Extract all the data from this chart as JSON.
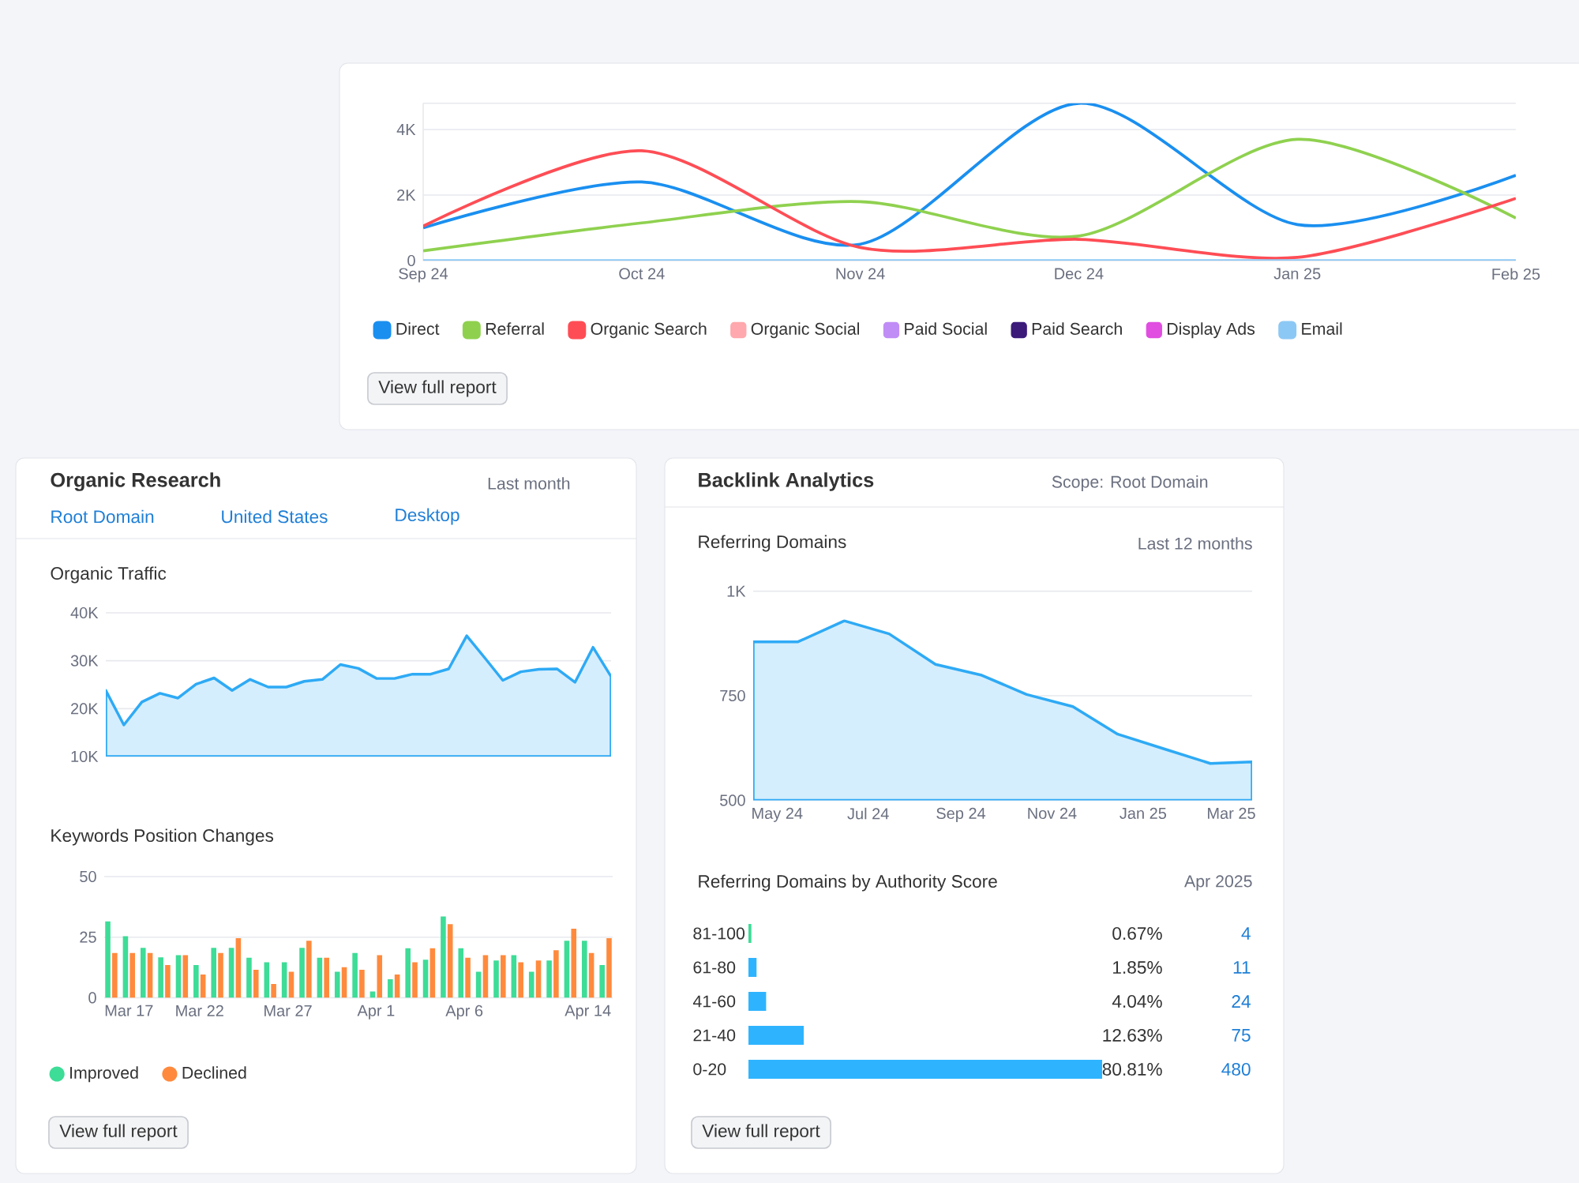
{
  "chart_data": [
    {
      "type": "line",
      "categories": [
        "Sep 24",
        "Oct 24",
        "Nov 24",
        "Dec 24",
        "Jan 25",
        "Feb 25"
      ],
      "series": [
        {
          "name": "Direct",
          "color": "#1a8ff0",
          "values": [
            1000,
            2400,
            500,
            4800,
            1100,
            2600
          ]
        },
        {
          "name": "Referral",
          "color": "#8fd14f",
          "values": [
            300,
            1150,
            1800,
            750,
            3700,
            1300
          ]
        },
        {
          "name": "Organic Search",
          "color": "#ff4d55",
          "values": [
            1050,
            3350,
            400,
            650,
            100,
            1900
          ]
        },
        {
          "name": "Organic Social",
          "color": "#ffa8ad",
          "values": [
            null,
            null,
            null,
            null,
            null,
            null
          ]
        },
        {
          "name": "Paid Social",
          "color": "#c08cf5",
          "values": [
            null,
            null,
            null,
            null,
            null,
            null
          ]
        },
        {
          "name": "Paid Search",
          "color": "#3b1a7a",
          "values": [
            null,
            null,
            null,
            null,
            null,
            null
          ]
        },
        {
          "name": "Display Ads",
          "color": "#e04de0",
          "values": [
            null,
            null,
            null,
            null,
            null,
            null
          ]
        },
        {
          "name": "Email",
          "color": "#8cc8f5",
          "values": [
            0,
            0,
            0,
            0,
            0,
            0
          ]
        }
      ],
      "ylim": [
        0,
        4800
      ],
      "yticks": [
        0,
        {
          "value": 2000,
          "label": "2K"
        },
        {
          "value": 4000,
          "label": "4K"
        }
      ],
      "grid": "y",
      "legend": "bottom",
      "annotations": [
        "View full report"
      ]
    },
    {
      "type": "area",
      "title": "Organic Traffic",
      "categories": [
        null,
        null,
        null,
        null,
        null,
        null,
        null,
        null,
        null,
        null,
        null,
        null,
        null,
        null,
        null,
        null,
        null,
        null,
        null,
        null,
        null,
        null,
        null,
        null,
        null,
        null,
        null,
        null,
        null
      ],
      "values": [
        23800,
        16600,
        21400,
        23200,
        22200,
        25100,
        26400,
        23800,
        26100,
        24500,
        24500,
        25700,
        26100,
        29200,
        28400,
        26300,
        26300,
        27200,
        27200,
        28300,
        35200,
        30600,
        25900,
        27700,
        28200,
        28300,
        25500,
        32800,
        26700
      ],
      "color": "#2eaaf5",
      "ylim": [
        10000,
        40000
      ],
      "yticks": [
        {
          "value": 10000,
          "label": "10K"
        },
        {
          "value": 20000,
          "label": "20K"
        },
        {
          "value": 30000,
          "label": "30K"
        },
        {
          "value": 40000,
          "label": "40K"
        }
      ],
      "grid": "y",
      "tick_labels": "y",
      "annotations": [
        "Organic Research",
        "Last month",
        "Root Domain",
        "United States",
        "Desktop"
      ]
    },
    {
      "type": "bar",
      "title": "Keywords Position Changes",
      "categories": [
        null,
        "Mar 17",
        null,
        null,
        null,
        "Mar 22",
        null,
        null,
        null,
        null,
        "Mar 27",
        null,
        null,
        null,
        null,
        "Apr 1",
        null,
        null,
        null,
        null,
        "Apr 6",
        null,
        null,
        null,
        null,
        null,
        null,
        "Apr 14",
        null
      ],
      "series": [
        {
          "name": "Improved",
          "color": "#3ddc97",
          "values": [
            31.5,
            25.4,
            20.6,
            16.7,
            17.6,
            13.5,
            20.6,
            20.6,
            16.5,
            14.6,
            14.6,
            20.6,
            16.5,
            10.7,
            18.5,
            2.6,
            7.6,
            20.4,
            15.7,
            33.5,
            20.4,
            10.7,
            15.4,
            17.6,
            10.7,
            15.4,
            23.5,
            23.5,
            13.5
          ]
        },
        {
          "name": "Declined",
          "color": "#ff8a3d",
          "values": [
            18.5,
            18.5,
            18.5,
            13.5,
            17.6,
            9.6,
            18.5,
            24.6,
            11.5,
            5.7,
            10.7,
            23.5,
            16.5,
            12.6,
            11.5,
            17.6,
            9.6,
            14.6,
            20.4,
            30.4,
            16.5,
            17.6,
            17.6,
            14.6,
            15.4,
            19.6,
            28.5,
            18.5,
            24.6
          ]
        }
      ],
      "ylim": [
        0,
        50
      ],
      "yticks": [
        0,
        25,
        50
      ],
      "grid": "y",
      "legend": "bottom left",
      "annotations": [
        "View full report"
      ]
    },
    {
      "type": "area",
      "title": "Referring Domains",
      "x": [
        "2024-04-15",
        "2024-05-15",
        "2024-06-15",
        "2024-07-15",
        "2024-08-15",
        "2024-09-15",
        "2024-10-15",
        "2024-11-15",
        "2024-12-15",
        "2025-01-15",
        "2025-02-15",
        "2025-03-15"
      ],
      "values": [
        879,
        879,
        929,
        898,
        825,
        799,
        753,
        724,
        658,
        623,
        588,
        592
      ],
      "color": "#2eaaf5",
      "xlim": [
        "2024-04-15",
        "2025-03-15"
      ],
      "xticks": [
        {
          "value": "2024-05-01",
          "label": "May 24"
        },
        {
          "value": "2024-07-01",
          "label": "Jul 24"
        },
        {
          "value": "2024-09-01",
          "label": "Sep 24"
        },
        {
          "value": "2024-11-01",
          "label": "Nov 24"
        },
        {
          "value": "2025-01-01",
          "label": "Jan 25"
        },
        {
          "value": "2025-03-01",
          "label": "Mar 25"
        }
      ],
      "ylim": [
        500,
        1000
      ],
      "yticks": [
        500,
        750,
        {
          "value": 1000,
          "label": "1K"
        }
      ],
      "grid": "y",
      "annotations": [
        "Backlink Analytics",
        "Scope: Root Domain",
        "Last 12 months"
      ]
    },
    {
      "type": "bar",
      "orientation": "horizontal",
      "title": "Referring Domains by Authority Score",
      "categories": [
        "81-100",
        "61-80",
        "41-60",
        "21-40",
        "0-20"
      ],
      "values": [
        0.67,
        1.85,
        4.04,
        12.63,
        80.81
      ],
      "colors": [
        "#3ddc97",
        "#2eb4ff",
        "#2eb4ff",
        "#2eb4ff",
        "#2eb4ff"
      ],
      "value_labels": [
        "0.67%",
        "1.85%",
        "4.04%",
        "12.63%",
        "80.81%"
      ],
      "tick_labels": "y",
      "annotations": [
        "Apr 2025",
        "View full report",
        "4",
        "11",
        "24",
        "75",
        "480"
      ]
    }
  ]
}
